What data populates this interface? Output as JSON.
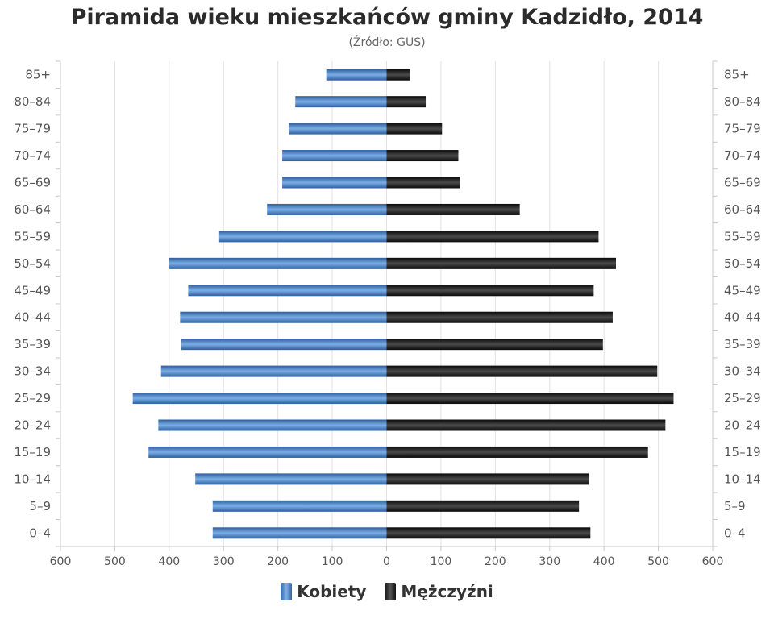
{
  "chart_data": {
    "type": "bar",
    "orientation": "horizontal-diverging",
    "title": "Piramida wieku mieszkańców gminy Kadzidło, 2014",
    "subtitle": "(Źródło: GUS)",
    "categories": [
      "85+",
      "80–84",
      "75–79",
      "70–74",
      "65–69",
      "60–64",
      "55–59",
      "50–54",
      "45–49",
      "40–44",
      "35–39",
      "30–34",
      "25–29",
      "20–24",
      "15–19",
      "10–14",
      "5–9",
      "0–4"
    ],
    "x_ticks": [
      "600",
      "500",
      "400",
      "300",
      "200",
      "100",
      "0",
      "100",
      "200",
      "300",
      "400",
      "500",
      "600"
    ],
    "xlim": [
      -600,
      600
    ],
    "grid": true,
    "legend_position": "bottom-center",
    "series": [
      {
        "name": "Kobiety",
        "color": "#4a7fc1",
        "values": [
          111,
          168,
          180,
          192,
          192,
          220,
          308,
          400,
          365,
          380,
          378,
          415,
          467,
          420,
          438,
          352,
          320,
          320
        ]
      },
      {
        "name": "Mężczyźni",
        "color": "#1a1a1a",
        "values": [
          43,
          72,
          102,
          132,
          135,
          245,
          390,
          422,
          381,
          416,
          398,
          498,
          528,
          513,
          481,
          372,
          354,
          375
        ]
      }
    ]
  }
}
